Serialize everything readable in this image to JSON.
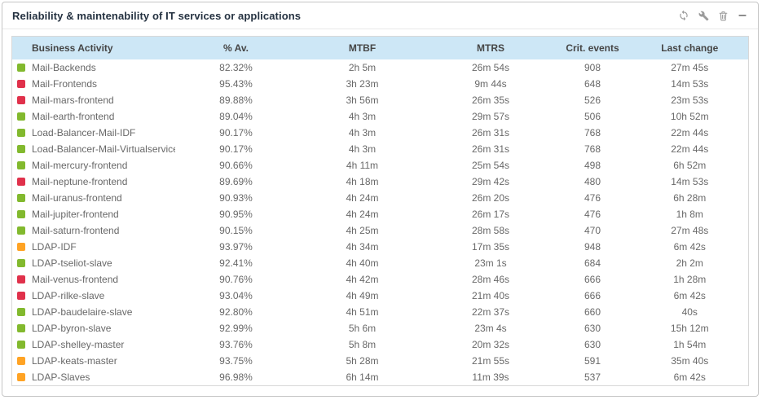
{
  "panel": {
    "title": "Reliability & maintenability of IT services or applications",
    "toolbar_icons": [
      {
        "name": "refresh-icon"
      },
      {
        "name": "wrench-icon"
      },
      {
        "name": "trash-icon"
      },
      {
        "name": "minimize-icon"
      }
    ]
  },
  "colors": {
    "status_green": "#82b92e",
    "status_red": "#e campione"
  },
  "table": {
    "columns": [
      "Business Activity",
      "% Av.",
      "MTBF",
      "MTRS",
      "Crit. events",
      "Last change"
    ],
    "rows": []
  }
}
